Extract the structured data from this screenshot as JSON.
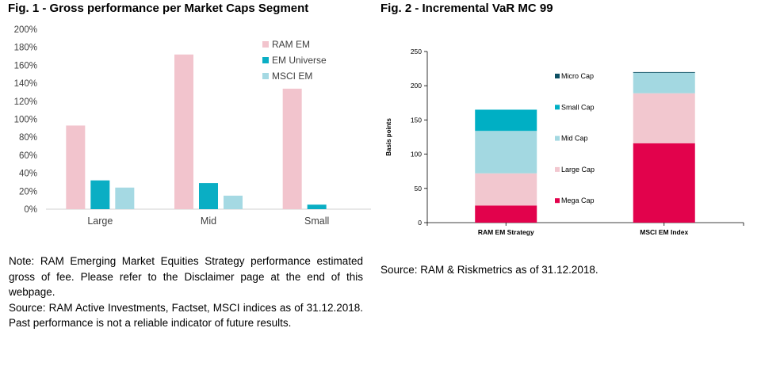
{
  "chart_data": [
    {
      "type": "bar",
      "title": "Fig. 1 - Gross performance per Market Caps Segment",
      "categories": [
        "Large",
        "Mid",
        "Small"
      ],
      "series": [
        {
          "name": "RAM EM",
          "values": [
            93,
            172,
            134
          ],
          "color": "#f2c4cd"
        },
        {
          "name": "EM Universe",
          "values": [
            32,
            29,
            5
          ],
          "color": "#0aaec4"
        },
        {
          "name": "MSCI EM",
          "values": [
            24,
            15,
            0
          ],
          "color": "#a5d9e3"
        }
      ],
      "ylim": [
        0,
        200
      ],
      "yticks": [
        0,
        20,
        40,
        60,
        80,
        100,
        120,
        140,
        160,
        180,
        200
      ],
      "ytick_labels": [
        "0%",
        "20%",
        "40%",
        "60%",
        "80%",
        "100%",
        "120%",
        "140%",
        "160%",
        "180%",
        "200%"
      ],
      "legend_position": "top-right",
      "xlabel": "",
      "ylabel": ""
    },
    {
      "type": "bar",
      "stacked": true,
      "title": "Fig. 2 - Incremental VaR MC 99",
      "categories": [
        "RAM EM Strategy",
        "MSCI EM Index"
      ],
      "series": [
        {
          "name": "Mega Cap",
          "values": [
            25,
            116
          ],
          "color": "#e2024c"
        },
        {
          "name": "Large Cap",
          "values": [
            47,
            73
          ],
          "color": "#f2c7cf"
        },
        {
          "name": "Mid Cap",
          "values": [
            62,
            30
          ],
          "color": "#a3d8e1"
        },
        {
          "name": "Small Cap",
          "values": [
            31,
            0
          ],
          "color": "#00afc4"
        },
        {
          "name": "Micro Cap",
          "values": [
            0,
            1
          ],
          "color": "#0d4f63"
        }
      ],
      "ylim": [
        0,
        250
      ],
      "yticks": [
        0,
        50,
        100,
        150,
        200,
        250
      ],
      "ytick_labels": [
        "0",
        "50",
        "100",
        "150",
        "200",
        "250"
      ],
      "ylabel": "Basis points",
      "xlabel": "",
      "legend_position": "middle"
    }
  ],
  "notes": {
    "fig1_note": "Note: RAM Emerging Market Equities Strategy performance estimated gross of fee. Please refer to the Disclaimer page at the end of this webpage.",
    "fig1_source": "Source: RAM Active Investments, Factset, MSCI indices as of 31.12.2018. Past performance is not a reliable indicator of future results.",
    "fig2_source": "Source: RAM & Riskmetrics as of 31.12.2018."
  }
}
